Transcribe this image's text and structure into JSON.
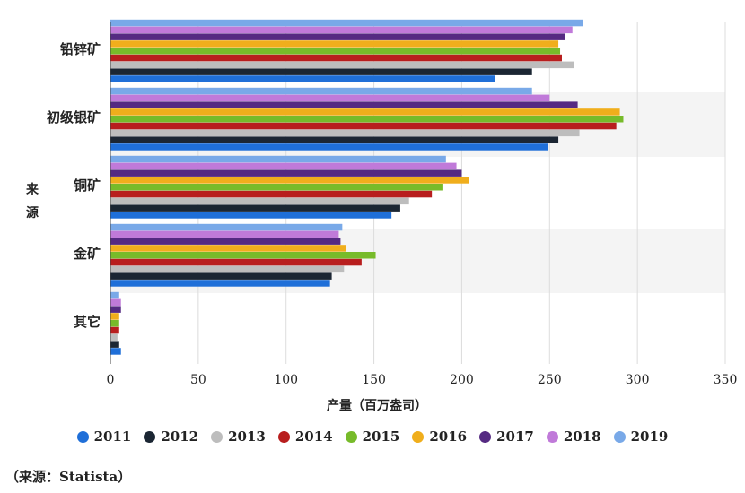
{
  "chart_data": {
    "type": "bar",
    "orientation": "horizontal",
    "title": "",
    "xlabel": "产量（百万盎司）",
    "ylabel": "来源",
    "xlim": [
      0,
      350
    ],
    "xticks": [
      "0",
      "50",
      "100",
      "150",
      "200",
      "250",
      "300",
      "350"
    ],
    "categories": [
      "铅锌矿",
      "初级银矿",
      "铜矿",
      "金矿",
      "其它"
    ],
    "series": [
      {
        "name": "2011",
        "color": "#1f6fd8",
        "values": [
          219,
          249,
          160,
          125,
          6
        ]
      },
      {
        "name": "2012",
        "color": "#1b2633",
        "values": [
          240,
          255,
          165,
          126,
          5
        ]
      },
      {
        "name": "2013",
        "color": "#bdbdbd",
        "values": [
          264,
          267,
          170,
          133,
          4
        ]
      },
      {
        "name": "2014",
        "color": "#b81e1e",
        "values": [
          257,
          288,
          183,
          143,
          5
        ]
      },
      {
        "name": "2015",
        "color": "#77bb2a",
        "values": [
          256,
          292,
          189,
          151,
          5
        ]
      },
      {
        "name": "2016",
        "color": "#f0ae1c",
        "values": [
          255,
          290,
          204,
          134,
          5
        ]
      },
      {
        "name": "2017",
        "color": "#552a82",
        "values": [
          259,
          266,
          200,
          131,
          6
        ]
      },
      {
        "name": "2018",
        "color": "#c07ad9",
        "values": [
          263,
          250,
          197,
          130,
          6
        ]
      },
      {
        "name": "2019",
        "color": "#79a9e8",
        "values": [
          269,
          240,
          191,
          132,
          5
        ]
      }
    ],
    "legend_position": "bottom",
    "grid": true
  },
  "source_note": "（来源：Statista）"
}
